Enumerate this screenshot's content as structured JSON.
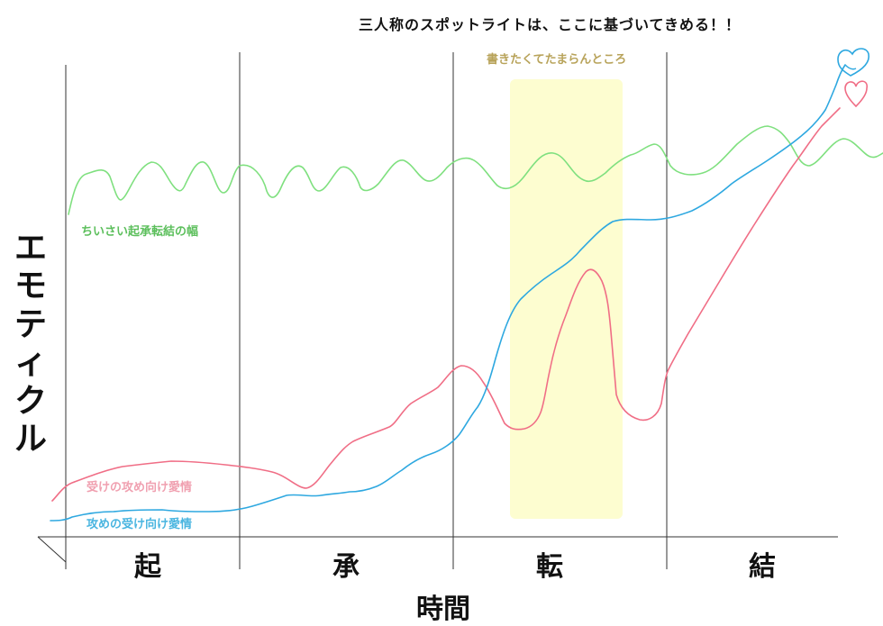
{
  "header_note": "三人称のスポットライトは、ここに基づいてきめる！！",
  "highlight_label": "書きたくてたまらんところ",
  "y_axis_label": "エモティクル",
  "x_axis_label": "時間",
  "phases": [
    "起",
    "承",
    "転",
    "結"
  ],
  "lines": {
    "green": {
      "label": "ちいさい起承転結の幅",
      "color": "#7fe07f"
    },
    "pink": {
      "label": "受けの攻め向け愛情",
      "color": "#f06e86"
    },
    "blue": {
      "label": "攻めの受け向け愛情",
      "color": "#2ea8e0"
    }
  },
  "colors": {
    "highlight_fill": "#fdfdd0",
    "axis": "#333333",
    "heart_pink": "#f06e86",
    "heart_blue": "#2ea8e0"
  }
}
